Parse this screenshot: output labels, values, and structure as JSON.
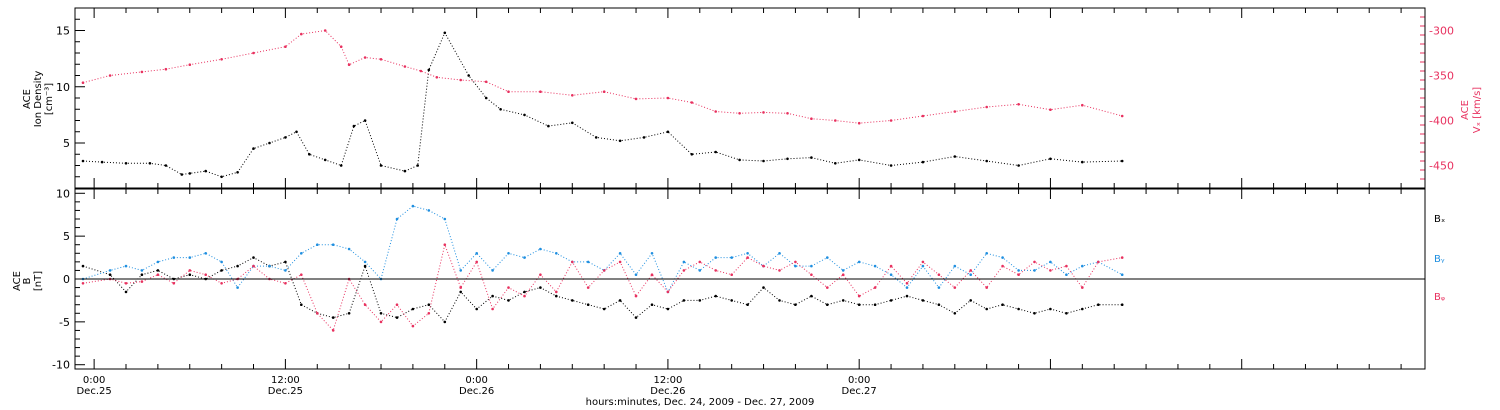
{
  "colors": {
    "black": "#000000",
    "pink": "#e8315f",
    "blue": "#1f8fe0",
    "axis": "#000000"
  },
  "chart_data": [
    {
      "type": "scatter",
      "panel": "ace-swepam",
      "ylabel_left": [
        "ACE",
        "Ion Density",
        "[cm⁻³]"
      ],
      "ylabel_right": [
        "ACE",
        "Vₓ [km/s]"
      ],
      "ylim": [
        1,
        17
      ],
      "ylim_right": [
        -475,
        -275
      ],
      "yticks_left": [
        5,
        10,
        15
      ],
      "yticks_right": [
        -300,
        -350,
        -400,
        -450
      ],
      "xlim_hours": [
        -1.2,
        83.5
      ],
      "series": [
        {
          "axis": "left",
          "color": "black",
          "x": [
            -0.7,
            0.5,
            2,
            3.5,
            4.5,
            5.5,
            6,
            7,
            8,
            9,
            10,
            11,
            12,
            12.7,
            13.5,
            14.5,
            15.5,
            16.3,
            17,
            18,
            19.5,
            20.3,
            21,
            22,
            23.5,
            24.6,
            25.5,
            27,
            28.5,
            30,
            31.5,
            33,
            34.5,
            36,
            37.5,
            39,
            40.5,
            42,
            43.5,
            45,
            46.5,
            48,
            50,
            52,
            54,
            56,
            58,
            60,
            62,
            64.5
          ],
          "y": [
            3.4,
            3.3,
            3.2,
            3.2,
            3.0,
            2.2,
            2.3,
            2.5,
            2.0,
            2.4,
            4.5,
            5.0,
            5.5,
            6.0,
            4.0,
            3.5,
            3.0,
            6.5,
            7.0,
            3.0,
            2.5,
            3.0,
            11.5,
            14.8,
            11.0,
            9.0,
            8.0,
            7.5,
            6.5,
            6.8,
            5.5,
            5.2,
            5.5,
            6.0,
            4.0,
            4.2,
            3.5,
            3.4,
            3.6,
            3.7,
            3.2,
            3.5,
            3.0,
            3.3,
            3.8,
            3.4,
            3.0,
            3.6,
            3.3,
            3.4
          ]
        },
        {
          "axis": "right",
          "color": "pink",
          "x": [
            -0.7,
            1,
            3,
            4.5,
            6,
            8,
            10,
            12,
            13,
            14.5,
            15.5,
            16,
            17,
            18,
            19.5,
            20.5,
            21.5,
            23,
            24.6,
            26,
            28,
            30,
            32,
            34,
            36,
            37.5,
            39,
            40.5,
            42,
            43.5,
            45,
            46.5,
            48,
            50,
            52,
            54,
            56,
            58,
            60,
            62,
            64.5
          ],
          "y": [
            -358,
            -350,
            -346,
            -343,
            -338,
            -332,
            -325,
            -318,
            -304,
            -300,
            -318,
            -338,
            -330,
            -332,
            -340,
            -345,
            -352,
            -355,
            -357,
            -368,
            -368,
            -372,
            -368,
            -376,
            -375,
            -380,
            -390,
            -392,
            -391,
            -392,
            -398,
            -400,
            -403,
            -400,
            -395,
            -390,
            -385,
            -382,
            -388,
            -383,
            -395
          ]
        }
      ]
    },
    {
      "type": "scatter",
      "panel": "ace-mag",
      "ylabel_left": [
        "ACE",
        "B",
        "[nT]"
      ],
      "ylim": [
        -10.5,
        10.5
      ],
      "yticks_left": [
        -10,
        -5,
        0,
        5,
        10
      ],
      "xlim_hours": [
        -1.2,
        83.5
      ],
      "legend": [
        {
          "label": "Bₓ",
          "color": "black"
        },
        {
          "label": "Bᵧ",
          "color": "blue"
        },
        {
          "label": "Bᵩ",
          "color": "pink"
        }
      ],
      "series": [
        {
          "name": "Bₓ",
          "color": "black",
          "x": [
            -0.7,
            1,
            2,
            3,
            4,
            5,
            6,
            7,
            8,
            9,
            10,
            11,
            12,
            13,
            14,
            15,
            16,
            17,
            18,
            19,
            20,
            21,
            22,
            23,
            24,
            25,
            26,
            27,
            28,
            29,
            30,
            31,
            32,
            33,
            34,
            35,
            36,
            37,
            38,
            39,
            40,
            41,
            42,
            43,
            44,
            45,
            46,
            47,
            48,
            49,
            50,
            51,
            52,
            53,
            54,
            55,
            56,
            57,
            58,
            59,
            60,
            61,
            62,
            63,
            64.5
          ],
          "y": [
            1.5,
            0.5,
            -1.5,
            0.5,
            1.0,
            0.0,
            0.5,
            0.0,
            1.0,
            1.5,
            2.5,
            1.5,
            2.0,
            -3.0,
            -4.0,
            -4.5,
            -4.0,
            1.5,
            -4.0,
            -4.5,
            -3.5,
            -3.0,
            -5.0,
            -1.5,
            -3.5,
            -2.0,
            -2.5,
            -1.5,
            -1.0,
            -2.0,
            -2.5,
            -3.0,
            -3.5,
            -2.5,
            -4.5,
            -3.0,
            -3.5,
            -2.5,
            -2.5,
            -2.0,
            -2.5,
            -3.0,
            -1.0,
            -2.5,
            -3.0,
            -2.0,
            -3.0,
            -2.5,
            -3.0,
            -3.0,
            -2.5,
            -2.0,
            -2.5,
            -3.0,
            -4.0,
            -2.5,
            -3.5,
            -3.0,
            -3.5,
            -4.0,
            -3.5,
            -4.0,
            -3.5,
            -3.0,
            -3.0
          ]
        },
        {
          "name": "Bᵧ",
          "color": "blue",
          "x": [
            -0.7,
            1,
            2,
            3,
            4,
            5,
            6,
            7,
            8,
            9,
            10,
            11,
            12,
            13,
            14,
            15,
            16,
            17,
            18,
            19,
            20,
            21,
            22,
            23,
            24,
            25,
            26,
            27,
            28,
            29,
            30,
            31,
            32,
            33,
            34,
            35,
            36,
            37,
            38,
            39,
            40,
            41,
            42,
            43,
            44,
            45,
            46,
            47,
            48,
            49,
            50,
            51,
            52,
            53,
            54,
            55,
            56,
            57,
            58,
            59,
            60,
            61,
            62,
            63,
            64.5
          ],
          "y": [
            0.0,
            1.0,
            1.5,
            1.0,
            2.0,
            2.5,
            2.5,
            3.0,
            2.0,
            -1.0,
            1.5,
            1.5,
            1.0,
            3.0,
            4.0,
            4.0,
            3.5,
            2.0,
            0.0,
            7.0,
            8.5,
            8.0,
            7.0,
            1.0,
            3.0,
            1.0,
            3.0,
            2.5,
            3.5,
            3.0,
            2.0,
            2.0,
            1.0,
            3.0,
            0.5,
            3.0,
            -1.5,
            2.0,
            1.0,
            2.5,
            2.5,
            3.0,
            1.5,
            3.0,
            1.5,
            1.5,
            2.5,
            1.0,
            2.0,
            1.5,
            0.5,
            -1.0,
            1.5,
            -1.0,
            1.5,
            0.5,
            3.0,
            2.5,
            1.0,
            1.0,
            2.0,
            0.5,
            1.5,
            2.0,
            0.5
          ]
        },
        {
          "name": "Bᵩ",
          "color": "pink",
          "x": [
            -0.7,
            1,
            2,
            3,
            4,
            5,
            6,
            7,
            8,
            9,
            10,
            11,
            12,
            13,
            14,
            15,
            16,
            17,
            18,
            19,
            20,
            21,
            22,
            23,
            24,
            25,
            26,
            27,
            28,
            29,
            30,
            31,
            32,
            33,
            34,
            35,
            36,
            37,
            38,
            39,
            40,
            41,
            42,
            43,
            44,
            45,
            46,
            47,
            48,
            49,
            50,
            51,
            52,
            53,
            54,
            55,
            56,
            57,
            58,
            59,
            60,
            61,
            62,
            63,
            64.5
          ],
          "y": [
            -0.5,
            0.0,
            -0.5,
            -0.3,
            0.5,
            -0.5,
            1.0,
            0.5,
            -0.5,
            0.0,
            1.5,
            0.0,
            -0.5,
            0.5,
            -4.0,
            -6.0,
            0.0,
            -3.0,
            -5.0,
            -3.0,
            -5.5,
            -4.0,
            4.0,
            -1.0,
            2.0,
            -3.5,
            -1.0,
            -2.0,
            0.5,
            -1.5,
            2.0,
            -1.0,
            1.0,
            2.0,
            -2.0,
            0.5,
            -1.5,
            1.0,
            2.0,
            1.0,
            0.5,
            2.5,
            1.5,
            1.0,
            2.0,
            0.5,
            -1.0,
            0.5,
            -2.0,
            -1.0,
            1.5,
            -0.5,
            2.0,
            0.5,
            -1.0,
            1.0,
            -1.0,
            1.5,
            0.5,
            2.0,
            1.0,
            1.5,
            -1.0,
            2.0,
            2.5
          ]
        }
      ]
    }
  ],
  "xaxis": {
    "ticks": [
      {
        "hour": 0,
        "time": "0:00",
        "date": "Dec.25"
      },
      {
        "hour": 12,
        "time": "12:00",
        "date": "Dec.25"
      },
      {
        "hour": 24,
        "time": "0:00",
        "date": "Dec.26"
      },
      {
        "hour": 36,
        "time": "12:00",
        "date": "Dec.26"
      },
      {
        "hour": 48,
        "time": "0:00",
        "date": "Dec.27"
      }
    ],
    "minor_step_hours": 2,
    "label": "hours:minutes, Dec. 24, 2009 - Dec. 27, 2009"
  }
}
